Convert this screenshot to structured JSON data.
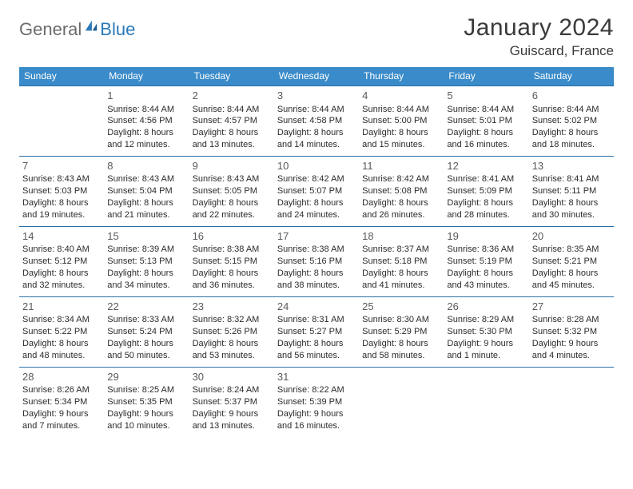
{
  "brand": {
    "part1": "General",
    "part2": "Blue"
  },
  "title": "January 2024",
  "location": "Guiscard, France",
  "colors": {
    "header_bg": "#3a8bc9",
    "header_text": "#ffffff",
    "cell_border": "#2a6fa6",
    "logo_gray": "#6b6b6b",
    "logo_blue": "#2979b8",
    "text": "#333333"
  },
  "dayNames": [
    "Sunday",
    "Monday",
    "Tuesday",
    "Wednesday",
    "Thursday",
    "Friday",
    "Saturday"
  ],
  "grid": {
    "leadingBlanks": 1,
    "daysInMonth": 31
  },
  "days": {
    "1": {
      "sunrise": "8:44 AM",
      "sunset": "4:56 PM",
      "daylight": "8 hours and 12 minutes."
    },
    "2": {
      "sunrise": "8:44 AM",
      "sunset": "4:57 PM",
      "daylight": "8 hours and 13 minutes."
    },
    "3": {
      "sunrise": "8:44 AM",
      "sunset": "4:58 PM",
      "daylight": "8 hours and 14 minutes."
    },
    "4": {
      "sunrise": "8:44 AM",
      "sunset": "5:00 PM",
      "daylight": "8 hours and 15 minutes."
    },
    "5": {
      "sunrise": "8:44 AM",
      "sunset": "5:01 PM",
      "daylight": "8 hours and 16 minutes."
    },
    "6": {
      "sunrise": "8:44 AM",
      "sunset": "5:02 PM",
      "daylight": "8 hours and 18 minutes."
    },
    "7": {
      "sunrise": "8:43 AM",
      "sunset": "5:03 PM",
      "daylight": "8 hours and 19 minutes."
    },
    "8": {
      "sunrise": "8:43 AM",
      "sunset": "5:04 PM",
      "daylight": "8 hours and 21 minutes."
    },
    "9": {
      "sunrise": "8:43 AM",
      "sunset": "5:05 PM",
      "daylight": "8 hours and 22 minutes."
    },
    "10": {
      "sunrise": "8:42 AM",
      "sunset": "5:07 PM",
      "daylight": "8 hours and 24 minutes."
    },
    "11": {
      "sunrise": "8:42 AM",
      "sunset": "5:08 PM",
      "daylight": "8 hours and 26 minutes."
    },
    "12": {
      "sunrise": "8:41 AM",
      "sunset": "5:09 PM",
      "daylight": "8 hours and 28 minutes."
    },
    "13": {
      "sunrise": "8:41 AM",
      "sunset": "5:11 PM",
      "daylight": "8 hours and 30 minutes."
    },
    "14": {
      "sunrise": "8:40 AM",
      "sunset": "5:12 PM",
      "daylight": "8 hours and 32 minutes."
    },
    "15": {
      "sunrise": "8:39 AM",
      "sunset": "5:13 PM",
      "daylight": "8 hours and 34 minutes."
    },
    "16": {
      "sunrise": "8:38 AM",
      "sunset": "5:15 PM",
      "daylight": "8 hours and 36 minutes."
    },
    "17": {
      "sunrise": "8:38 AM",
      "sunset": "5:16 PM",
      "daylight": "8 hours and 38 minutes."
    },
    "18": {
      "sunrise": "8:37 AM",
      "sunset": "5:18 PM",
      "daylight": "8 hours and 41 minutes."
    },
    "19": {
      "sunrise": "8:36 AM",
      "sunset": "5:19 PM",
      "daylight": "8 hours and 43 minutes."
    },
    "20": {
      "sunrise": "8:35 AM",
      "sunset": "5:21 PM",
      "daylight": "8 hours and 45 minutes."
    },
    "21": {
      "sunrise": "8:34 AM",
      "sunset": "5:22 PM",
      "daylight": "8 hours and 48 minutes."
    },
    "22": {
      "sunrise": "8:33 AM",
      "sunset": "5:24 PM",
      "daylight": "8 hours and 50 minutes."
    },
    "23": {
      "sunrise": "8:32 AM",
      "sunset": "5:26 PM",
      "daylight": "8 hours and 53 minutes."
    },
    "24": {
      "sunrise": "8:31 AM",
      "sunset": "5:27 PM",
      "daylight": "8 hours and 56 minutes."
    },
    "25": {
      "sunrise": "8:30 AM",
      "sunset": "5:29 PM",
      "daylight": "8 hours and 58 minutes."
    },
    "26": {
      "sunrise": "8:29 AM",
      "sunset": "5:30 PM",
      "daylight": "9 hours and 1 minute."
    },
    "27": {
      "sunrise": "8:28 AM",
      "sunset": "5:32 PM",
      "daylight": "9 hours and 4 minutes."
    },
    "28": {
      "sunrise": "8:26 AM",
      "sunset": "5:34 PM",
      "daylight": "9 hours and 7 minutes."
    },
    "29": {
      "sunrise": "8:25 AM",
      "sunset": "5:35 PM",
      "daylight": "9 hours and 10 minutes."
    },
    "30": {
      "sunrise": "8:24 AM",
      "sunset": "5:37 PM",
      "daylight": "9 hours and 13 minutes."
    },
    "31": {
      "sunrise": "8:22 AM",
      "sunset": "5:39 PM",
      "daylight": "9 hours and 16 minutes."
    }
  },
  "labels": {
    "sunrise": "Sunrise:",
    "sunset": "Sunset:",
    "daylight": "Daylight:"
  }
}
